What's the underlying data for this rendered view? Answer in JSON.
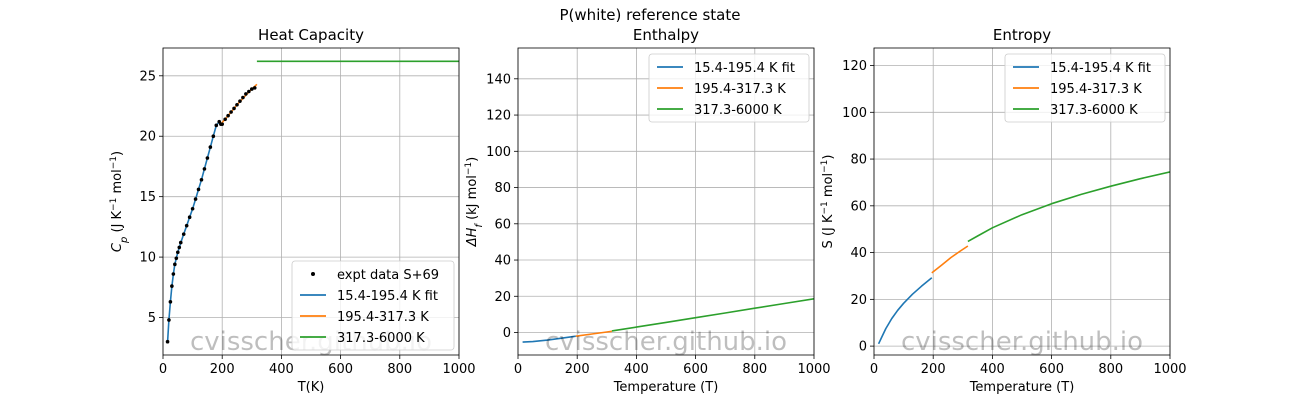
{
  "suptitle": "P(white) reference state",
  "watermark": "cvisscher.github.io",
  "chart_data": [
    {
      "type": "line",
      "title": "Heat Capacity",
      "xlabel": "T(K)",
      "ylabel_parts": [
        "C",
        "p",
        " (J K",
        "−1",
        " mol",
        "−1",
        ")"
      ],
      "xlim": [
        0,
        1000
      ],
      "ylim": [
        1.9,
        27.3
      ],
      "xticks": [
        0,
        200,
        400,
        600,
        800,
        1000
      ],
      "yticks": [
        5,
        10,
        15,
        20,
        25
      ],
      "grid": true,
      "legend_loc": "lower right",
      "series": [
        {
          "name": "expt data S+69",
          "style": "points",
          "color": "#000000",
          "x": [
            15.4,
            20,
            25,
            30,
            35,
            40,
            45,
            50,
            55,
            60,
            70,
            80,
            90,
            100,
            110,
            120,
            130,
            140,
            150,
            160,
            170,
            180,
            190,
            195.4,
            200,
            210,
            220,
            230,
            240,
            250,
            260,
            270,
            280,
            290,
            300,
            310
          ],
          "y": [
            3.0,
            4.8,
            6.3,
            7.6,
            8.6,
            9.4,
            9.9,
            10.4,
            10.8,
            11.2,
            11.9,
            12.6,
            13.3,
            14.0,
            14.8,
            15.6,
            16.4,
            17.3,
            18.2,
            19.1,
            20.0,
            20.9,
            21.2,
            21.0,
            21.0,
            21.4,
            21.7,
            22.0,
            22.3,
            22.6,
            22.9,
            23.2,
            23.5,
            23.7,
            23.9,
            24.0
          ]
        },
        {
          "name": "15.4-195.4 K fit",
          "color": "#1f77b4",
          "x": [
            15.4,
            20,
            25,
            30,
            35,
            40,
            45,
            50,
            55,
            60,
            70,
            80,
            90,
            100,
            110,
            120,
            130,
            140,
            150,
            160,
            170,
            180,
            190,
            195.4
          ],
          "y": [
            3.0,
            4.8,
            6.3,
            7.6,
            8.6,
            9.4,
            9.9,
            10.4,
            10.8,
            11.2,
            11.9,
            12.6,
            13.3,
            14.0,
            14.8,
            15.6,
            16.4,
            17.3,
            18.2,
            19.1,
            20.0,
            20.9,
            21.2,
            21.0
          ]
        },
        {
          "name": "195.4-317.3 K",
          "color": "#ff7f0e",
          "x": [
            195.4,
            220,
            250,
            280,
            300,
            317.3
          ],
          "y": [
            21.0,
            21.7,
            22.6,
            23.4,
            23.9,
            24.3
          ]
        },
        {
          "name": "317.3-6000 K",
          "color": "#2ca02c",
          "x": [
            317.3,
            1000
          ],
          "y": [
            26.2,
            26.2
          ]
        }
      ]
    },
    {
      "type": "line",
      "title": "Enthalpy",
      "xlabel": "Temperature (T)",
      "ylabel_parts": [
        "ΔH",
        "f",
        " (kJ mol",
        "−1",
        ")"
      ],
      "xlim": [
        0,
        1000
      ],
      "ylim": [
        -12.4,
        157
      ],
      "xticks": [
        0,
        200,
        400,
        600,
        800,
        1000
      ],
      "yticks": [
        0,
        20,
        40,
        60,
        80,
        100,
        120,
        140
      ],
      "grid": true,
      "legend_loc": "upper right",
      "series": [
        {
          "name": "15.4-195.4 K fit",
          "color": "#1f77b4",
          "x": [
            15.4,
            50,
            100,
            150,
            195.4
          ],
          "y": [
            -5.3,
            -5.0,
            -4.2,
            -3.1,
            -2.0
          ]
        },
        {
          "name": "195.4-317.3 K",
          "color": "#ff7f0e",
          "x": [
            195.4,
            250,
            300,
            317.3
          ],
          "y": [
            -2.0,
            -0.8,
            0.3,
            0.7
          ]
        },
        {
          "name": "317.3-6000 K",
          "color": "#2ca02c",
          "x": [
            317.3,
            400,
            500,
            600,
            700,
            800,
            900,
            1000
          ],
          "y": [
            0.9,
            3.0,
            5.6,
            8.2,
            10.8,
            13.4,
            16.0,
            18.6
          ]
        }
      ]
    },
    {
      "type": "line",
      "title": "Entropy",
      "xlabel": "Temperature (T)",
      "ylabel_parts": [
        "S (J K",
        "−1",
        " mol",
        "−1",
        ")"
      ],
      "xlim": [
        0,
        1000
      ],
      "ylim": [
        -3.8,
        127.5
      ],
      "xticks": [
        0,
        200,
        400,
        600,
        800,
        1000
      ],
      "yticks": [
        0,
        20,
        40,
        60,
        80,
        100,
        120
      ],
      "grid": true,
      "legend_loc": "upper right",
      "series": [
        {
          "name": "15.4-195.4 K fit",
          "color": "#1f77b4",
          "x": [
            15.4,
            25,
            40,
            60,
            80,
            100,
            130,
            160,
            195.4
          ],
          "y": [
            1.0,
            3.5,
            7.5,
            11.8,
            15.3,
            18.3,
            22.2,
            25.6,
            29.2
          ]
        },
        {
          "name": "195.4-317.3 K",
          "color": "#ff7f0e",
          "x": [
            195.4,
            230,
            260,
            290,
            317.3
          ],
          "y": [
            31.3,
            34.8,
            37.9,
            40.5,
            42.8
          ]
        },
        {
          "name": "317.3-6000 K",
          "color": "#2ca02c",
          "x": [
            317.3,
            350,
            400,
            500,
            600,
            700,
            800,
            900,
            1000
          ],
          "y": [
            44.8,
            47.1,
            50.6,
            56.2,
            60.9,
            64.9,
            68.4,
            71.6,
            74.5
          ]
        }
      ]
    }
  ]
}
